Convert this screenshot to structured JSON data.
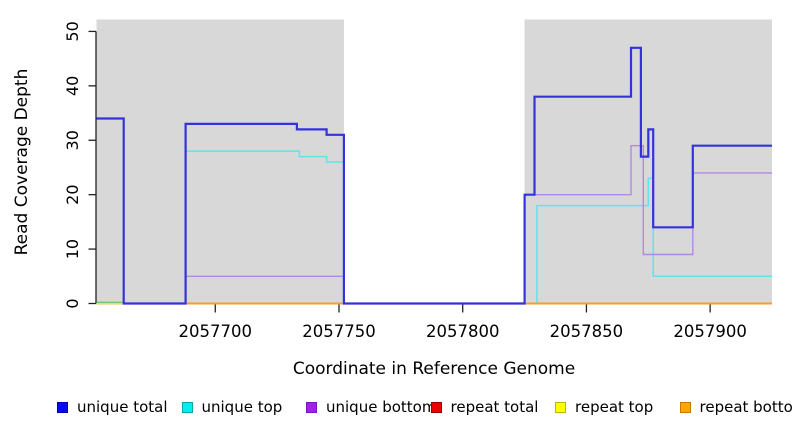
{
  "figure": {
    "xlabel": "Coordinate in Reference Genome",
    "ylabel": "Read Coverage Depth",
    "background_color": "#ffffff",
    "shaded_region_color": "#d8d8d8"
  },
  "chart_data": {
    "type": "line",
    "step": true,
    "title": "",
    "xlabel": "Coordinate in Reference Genome",
    "ylabel": "Read Coverage Depth",
    "xlim": [
      2057652,
      2057925
    ],
    "ylim": [
      0,
      52.1
    ],
    "grid": false,
    "legend_position": "bottom",
    "x_ticks": [
      2057700,
      2057750,
      2057800,
      2057850,
      2057900
    ],
    "x_tick_labels": [
      "2057700",
      "2057750",
      "2057800",
      "2057850",
      "2057900"
    ],
    "y_ticks": [
      0,
      10,
      20,
      30,
      40,
      50
    ],
    "y_tick_labels": [
      "0",
      "10",
      "20",
      "30",
      "40",
      "50"
    ],
    "shaded_regions": [
      {
        "name": "covered-region-left",
        "x1": 2057652,
        "x2": 2057752,
        "color": "#d8d8d8"
      },
      {
        "name": "covered-region-right",
        "x1": 2057825,
        "x2": 2057925,
        "color": "#d8d8d8"
      }
    ],
    "overlap_artifact": {
      "note": "greenish 0-line segment at far left (overlapping series)",
      "x1": 2057652,
      "x2": 2057663,
      "y": 0.2,
      "color": "#74c974"
    },
    "series": [
      {
        "name": "repeat total",
        "color": "#dd2222",
        "width": 1.5,
        "points": [
          [
            2057652,
            0
          ],
          [
            2057925,
            0
          ]
        ]
      },
      {
        "name": "repeat top",
        "color": "#eeee22",
        "width": 1.5,
        "points": [
          [
            2057652,
            0
          ],
          [
            2057925,
            0
          ]
        ]
      },
      {
        "name": "unique top",
        "color": "#5fe3ec",
        "width": 1.5,
        "points": [
          [
            2057688,
            28
          ],
          [
            2057734,
            27
          ],
          [
            2057745,
            26
          ],
          [
            2057752,
            0
          ],
          [
            2057830,
            18
          ],
          [
            2057875,
            23
          ],
          [
            2057877,
            5
          ],
          [
            2057925,
            5
          ]
        ]
      },
      {
        "name": "repeat bottom",
        "color": "#ff9d20",
        "width": 2,
        "points": [
          [
            2057688,
            0
          ],
          [
            2057925,
            0
          ]
        ]
      },
      {
        "name": "unique bottom",
        "color": "#b289e2",
        "width": 1.4,
        "points": [
          [
            2057688,
            5
          ],
          [
            2057752,
            0
          ],
          [
            2057825,
            20
          ],
          [
            2057868,
            29
          ],
          [
            2057873,
            9
          ],
          [
            2057893,
            24
          ],
          [
            2057925,
            24
          ]
        ]
      },
      {
        "name": "unique total",
        "color": "#3432da",
        "width": 2.2,
        "points": [
          [
            2057652,
            34
          ],
          [
            2057663,
            0
          ],
          [
            2057688,
            33
          ],
          [
            2057733,
            32
          ],
          [
            2057745,
            31
          ],
          [
            2057752,
            0
          ],
          [
            2057825,
            20
          ],
          [
            2057829,
            38
          ],
          [
            2057868,
            47
          ],
          [
            2057872,
            27
          ],
          [
            2057875,
            32
          ],
          [
            2057877,
            14
          ],
          [
            2057893,
            29
          ],
          [
            2057925,
            29
          ]
        ]
      }
    ]
  },
  "legend": {
    "items": [
      {
        "label": "unique total",
        "fill": "#0a0aee",
        "border": "#0000b0"
      },
      {
        "label": "unique top",
        "fill": "#00eeee",
        "border": "#00a8a8"
      },
      {
        "label": "unique bottom",
        "fill": "#a020f0",
        "border": "#7b12c0"
      },
      {
        "label": "repeat total",
        "fill": "#ee0000",
        "border": "#990000"
      },
      {
        "label": "repeat top",
        "fill": "#ffff00",
        "border": "#b8b800"
      },
      {
        "label": "repeat bottom",
        "fill": "#ffa500",
        "border": "#c87800"
      }
    ]
  }
}
